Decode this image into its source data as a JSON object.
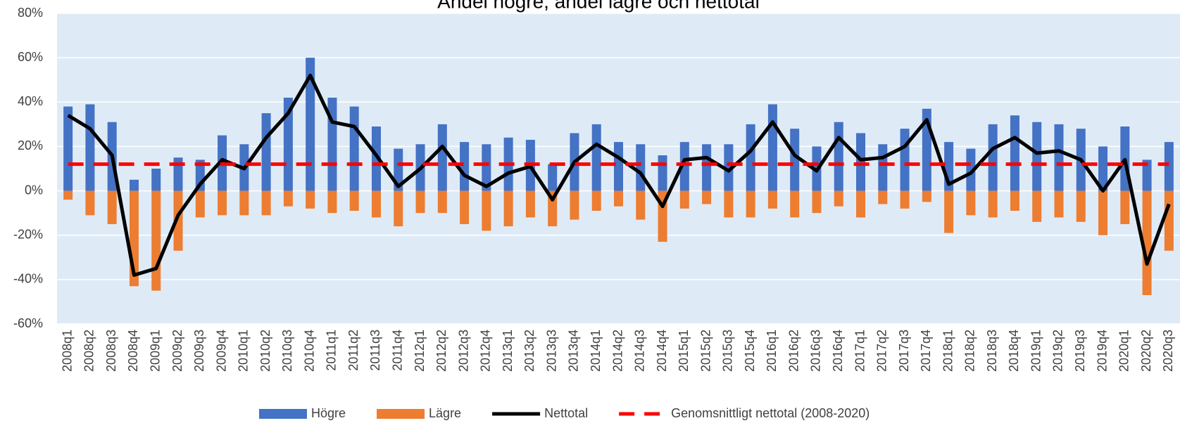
{
  "chart_data": {
    "type": "bar_line",
    "title": "Andel högre, andel lägre och nettotal",
    "categories": [
      "2008q1",
      "2008q2",
      "2008q3",
      "2008q4",
      "2009q1",
      "2009q2",
      "2009q3",
      "2009q4",
      "2010q1",
      "2010q2",
      "2010q3",
      "2010q4",
      "2011q1",
      "2011q2",
      "2011q3",
      "2011q4",
      "2012q1",
      "2012q2",
      "2012q3",
      "2012q4",
      "2013q1",
      "2013q2",
      "2013q3",
      "2013q4",
      "2014q1",
      "2014q2",
      "2014q3",
      "2014q4",
      "2015q1",
      "2015q2",
      "2015q3",
      "2015q4",
      "2016q1",
      "2016q2",
      "2016q3",
      "2016q4",
      "2017q1",
      "2017q2",
      "2017q3",
      "2017q4",
      "2018q1",
      "2018q2",
      "2018q3",
      "2018q4",
      "2019q1",
      "2019q2",
      "2019q3",
      "2019q4",
      "2020q1",
      "2020q2",
      "2020q3"
    ],
    "series": [
      {
        "name": "Högre",
        "kind": "bar",
        "color": "#4472c4",
        "values": [
          38,
          39,
          31,
          5,
          10,
          15,
          14,
          25,
          21,
          35,
          42,
          60,
          42,
          38,
          29,
          19,
          21,
          30,
          22,
          21,
          24,
          23,
          12,
          26,
          30,
          22,
          21,
          16,
          22,
          21,
          21,
          30,
          39,
          28,
          20,
          31,
          26,
          21,
          28,
          37,
          22,
          19,
          30,
          34,
          31,
          30,
          28,
          20,
          29,
          14,
          22
        ]
      },
      {
        "name": "Lägre",
        "kind": "bar",
        "color": "#ed7d31",
        "values": [
          -4,
          -11,
          -15,
          -43,
          -45,
          -27,
          -12,
          -11,
          -11,
          -11,
          -7,
          -8,
          -10,
          -9,
          -12,
          -16,
          -10,
          -10,
          -15,
          -18,
          -16,
          -12,
          -16,
          -13,
          -9,
          -7,
          -13,
          -23,
          -8,
          -6,
          -12,
          -12,
          -8,
          -12,
          -10,
          -7,
          -12,
          -6,
          -8,
          -5,
          -19,
          -11,
          -12,
          -9,
          -14,
          -12,
          -14,
          -20,
          -15,
          -47,
          -27
        ]
      },
      {
        "name": "Nettotal",
        "kind": "line",
        "color": "#000000",
        "values": [
          34,
          28,
          16,
          -38,
          -35,
          -11,
          3,
          14,
          10,
          24,
          35,
          52,
          31,
          29,
          16,
          2,
          10,
          20,
          7,
          2,
          8,
          11,
          -4,
          13,
          21,
          15,
          8,
          -7,
          14,
          15,
          9,
          18,
          31,
          16,
          9,
          24,
          14,
          15,
          20,
          32,
          3,
          8,
          19,
          24,
          17,
          18,
          14,
          0,
          14,
          -33,
          -6
        ]
      },
      {
        "name": "Genomsnittligt nettotal (2008-2020)",
        "kind": "dashed",
        "color": "#ff0000",
        "values": [
          12,
          12,
          12,
          12,
          12,
          12,
          12,
          12,
          12,
          12,
          12,
          12,
          12,
          12,
          12,
          12,
          12,
          12,
          12,
          12,
          12,
          12,
          12,
          12,
          12,
          12,
          12,
          12,
          12,
          12,
          12,
          12,
          12,
          12,
          12,
          12,
          12,
          12,
          12,
          12,
          12,
          12,
          12,
          12,
          12,
          12,
          12,
          12,
          12,
          12,
          12
        ]
      }
    ],
    "ylim": [
      -60,
      80
    ],
    "yticks": [
      {
        "value": -60,
        "label": "-60%"
      },
      {
        "value": -40,
        "label": "-40%"
      },
      {
        "value": -20,
        "label": "-20%"
      },
      {
        "value": 0,
        "label": "0%"
      },
      {
        "value": 20,
        "label": "20%"
      },
      {
        "value": 40,
        "label": "40%"
      },
      {
        "value": 60,
        "label": "60%"
      },
      {
        "value": 80,
        "label": "80%"
      }
    ],
    "grid": true,
    "plot_background": "#deebf7",
    "legend": "bottom"
  }
}
